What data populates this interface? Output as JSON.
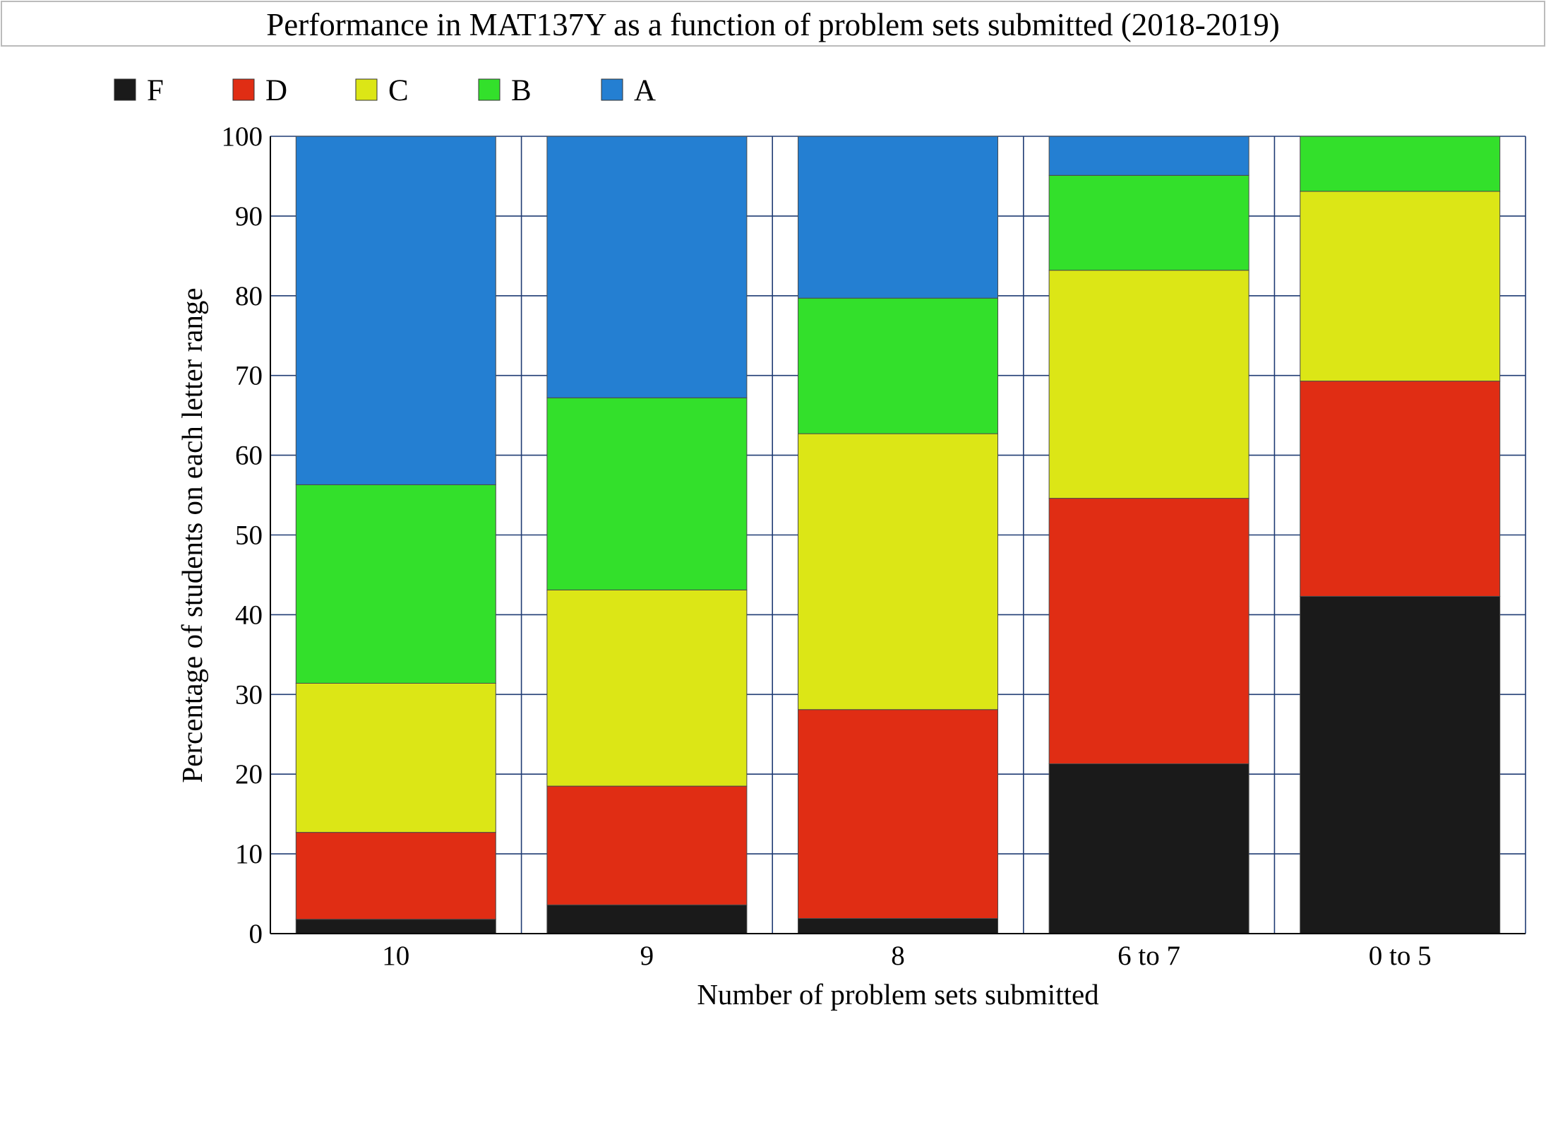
{
  "chart_data": {
    "type": "bar",
    "stacked": true,
    "title": "Performance in MAT137Y as a function of problem sets submitted (2018-2019)",
    "xlabel": "Number of problem sets submitted",
    "ylabel": "Percentage of students on each letter range",
    "categories": [
      "10",
      "9",
      "8",
      "6 to 7",
      "0 to 5"
    ],
    "ylim": [
      0,
      100
    ],
    "yticks": [
      0,
      10,
      20,
      30,
      40,
      50,
      60,
      70,
      80,
      90,
      100
    ],
    "grid": true,
    "legend_position": "top-left",
    "series": [
      {
        "name": "F",
        "color": "#1a1a1a",
        "values": [
          1.8,
          3.6,
          1.9,
          21.3,
          42.3
        ]
      },
      {
        "name": "D",
        "color": "#e02d14",
        "values": [
          10.9,
          14.9,
          26.2,
          33.3,
          27.0
        ]
      },
      {
        "name": "C",
        "color": "#dce616",
        "values": [
          18.7,
          24.6,
          34.6,
          28.6,
          23.8
        ]
      },
      {
        "name": "B",
        "color": "#33e02b",
        "values": [
          24.9,
          24.1,
          17.0,
          11.9,
          6.9
        ]
      },
      {
        "name": "A",
        "color": "#247fd2",
        "values": [
          43.7,
          32.8,
          20.3,
          4.9,
          0.0
        ]
      }
    ]
  }
}
